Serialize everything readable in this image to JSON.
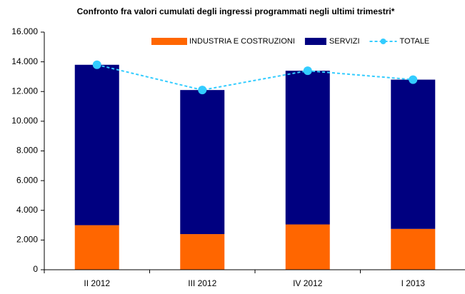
{
  "chart_data": {
    "type": "bar",
    "title": "Confronto fra valori cumulati degli ingressi programmati negli ultimi trimestri*",
    "categories": [
      "II 2012",
      "III 2012",
      "IV 2012",
      "I 2013"
    ],
    "series": [
      {
        "name": "INDUSTRIA E COSTRUZIONI",
        "color": "#ff6600",
        "values": [
          3000,
          2400,
          3050,
          2750
        ]
      },
      {
        "name": "SERVIZI",
        "color": "#000080",
        "values": [
          10800,
          9700,
          10350,
          10050
        ]
      },
      {
        "name": "TOTALE",
        "type": "line",
        "color": "#33ccff",
        "values": [
          13800,
          12100,
          13400,
          12800
        ]
      }
    ],
    "stacked": true,
    "ylim": [
      0,
      16000
    ],
    "yticks": [
      0,
      {
        "value": 2000,
        "label": "2.000"
      },
      {
        "value": 4000,
        "label": "4.000"
      },
      {
        "value": 6000,
        "label": "6.000"
      },
      {
        "value": 8000,
        "label": "8.000"
      },
      {
        "value": 10000,
        "label": "10.000"
      },
      {
        "value": 12000,
        "label": "12.000"
      },
      {
        "value": 14000,
        "label": "14.000"
      },
      {
        "value": 16000,
        "label": "16.000"
      }
    ],
    "grid": false,
    "legend": "top"
  }
}
